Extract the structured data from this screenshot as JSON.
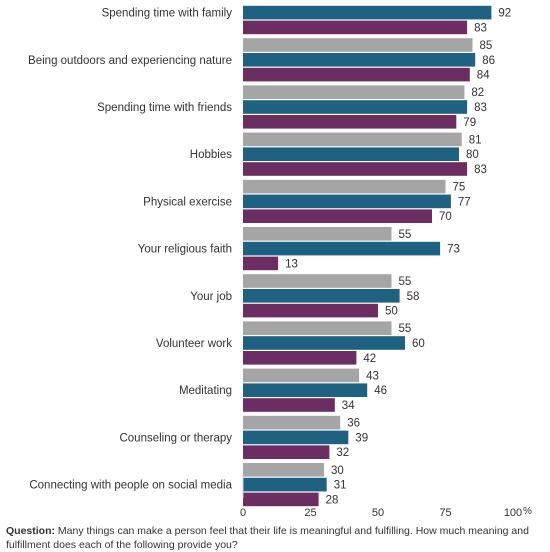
{
  "chart_data": {
    "type": "bar",
    "orientation": "horizontal",
    "categories": [
      "Spending time with family",
      "Being outdoors and experiencing nature",
      "Spending time with friends",
      "Hobbies",
      "Physical exercise",
      "Your religious faith",
      "Your job",
      "Volunteer work",
      "Meditating",
      "Counseling or therapy",
      "Connecting with people on social media"
    ],
    "series": [
      {
        "values": [
          null,
          85,
          82,
          81,
          75,
          55,
          55,
          55,
          43,
          36,
          30
        ],
        "color": "#a5a5a5"
      },
      {
        "values": [
          92,
          86,
          83,
          80,
          77,
          73,
          58,
          60,
          46,
          39,
          31
        ],
        "color": "#1f6180"
      },
      {
        "values": [
          83,
          84,
          79,
          83,
          70,
          13,
          50,
          42,
          34,
          32,
          28
        ],
        "color": "#6b2d62"
      }
    ],
    "x_ticks": [
      "0",
      "25",
      "50",
      "75",
      "100"
    ],
    "x_unit": "%",
    "xlim": [
      0,
      100
    ],
    "grid": false,
    "legend": "none"
  },
  "footnote": {
    "label": "Question:",
    "text": "Many things can make a person feel that their life is meaningful and fulfilling. How much meaning and fulfillment does each of the following provide you?"
  }
}
